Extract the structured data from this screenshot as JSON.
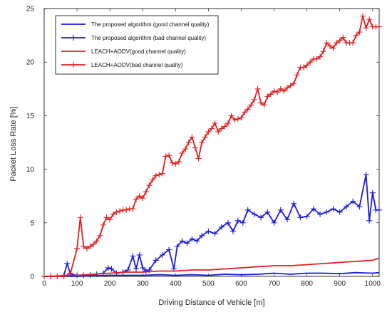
{
  "chart_data": {
    "type": "line",
    "xlabel": "Driving Distance of Vehicle [m]",
    "ylabel": "Packet Loss Rate [%]",
    "xlim": [
      0,
      1020
    ],
    "ylim": [
      0,
      25
    ],
    "xticks": [
      0,
      100,
      200,
      300,
      400,
      500,
      600,
      700,
      800,
      900,
      1000
    ],
    "yticks": [
      0,
      5,
      10,
      15,
      20,
      25
    ],
    "grid": true,
    "legend_position": "top-left",
    "series": [
      {
        "name": "The proposed algorithm (good channel quality)",
        "color": "#1a1adc",
        "marker": "none",
        "x": [
          0,
          100,
          150,
          200,
          250,
          300,
          350,
          400,
          450,
          500,
          550,
          600,
          650,
          700,
          750,
          800,
          850,
          900,
          950,
          1000,
          1020
        ],
        "y": [
          0,
          0,
          0.05,
          0.1,
          0.1,
          0.1,
          0.15,
          0.1,
          0.15,
          0.1,
          0.2,
          0.15,
          0.2,
          0.3,
          0.2,
          0.3,
          0.3,
          0.25,
          0.35,
          0.3,
          0.35
        ]
      },
      {
        "name": "The proposed algorithm (bad channel quality)",
        "color": "#1a1adc",
        "marker": "plus",
        "x": [
          0,
          20,
          40,
          60,
          70,
          80,
          100,
          120,
          140,
          160,
          180,
          195,
          205,
          220,
          240,
          255,
          270,
          280,
          290,
          300,
          310,
          320,
          340,
          360,
          380,
          395,
          405,
          420,
          435,
          450,
          465,
          480,
          500,
          520,
          540,
          560,
          575,
          590,
          605,
          620,
          640,
          660,
          680,
          700,
          720,
          740,
          760,
          780,
          800,
          820,
          840,
          860,
          880,
          900,
          920,
          940,
          960,
          980,
          990,
          1000,
          1010,
          1020
        ],
        "y": [
          0,
          0,
          0,
          0.1,
          1.2,
          0.2,
          0.1,
          0.1,
          0.15,
          0.2,
          0.3,
          0.8,
          0.7,
          0.3,
          0.4,
          0.6,
          1.9,
          0.7,
          2.0,
          0.8,
          0.5,
          0.6,
          1.5,
          2.0,
          2.5,
          0.7,
          2.8,
          3.3,
          3.1,
          3.5,
          3.3,
          3.8,
          4.2,
          4.0,
          4.6,
          5.0,
          4.2,
          5.2,
          5.0,
          6.2,
          5.8,
          5.5,
          6.0,
          5.0,
          6.2,
          5.3,
          6.8,
          5.5,
          5.6,
          6.3,
          5.8,
          6.0,
          6.3,
          6.0,
          6.5,
          7.0,
          6.5,
          9.5,
          5.2,
          7.8,
          6.2,
          6.2
        ]
      },
      {
        "name": "LEACH+AODV(good channel quality)",
        "color": "#e02020",
        "marker": "none",
        "x": [
          0,
          100,
          150,
          200,
          250,
          300,
          350,
          400,
          450,
          500,
          550,
          600,
          650,
          700,
          750,
          800,
          850,
          900,
          950,
          1000,
          1020
        ],
        "y": [
          0,
          0.1,
          0.2,
          0.3,
          0.4,
          0.4,
          0.5,
          0.5,
          0.6,
          0.6,
          0.7,
          0.8,
          0.9,
          1.0,
          1.0,
          1.1,
          1.2,
          1.3,
          1.4,
          1.5,
          1.7
        ]
      },
      {
        "name": "LEACH+AODV(bad channel quality)",
        "color": "#e02020",
        "marker": "plus",
        "x": [
          0,
          20,
          40,
          60,
          80,
          100,
          110,
          120,
          130,
          140,
          150,
          160,
          170,
          180,
          190,
          200,
          210,
          220,
          230,
          240,
          250,
          260,
          270,
          280,
          290,
          300,
          310,
          320,
          330,
          340,
          350,
          360,
          370,
          380,
          390,
          400,
          410,
          420,
          430,
          440,
          450,
          460,
          470,
          480,
          490,
          500,
          510,
          520,
          530,
          540,
          550,
          560,
          570,
          580,
          590,
          600,
          610,
          620,
          630,
          640,
          650,
          660,
          670,
          680,
          690,
          700,
          710,
          720,
          730,
          740,
          750,
          760,
          770,
          780,
          790,
          800,
          810,
          820,
          830,
          840,
          850,
          860,
          870,
          880,
          890,
          900,
          910,
          920,
          930,
          940,
          950,
          960,
          970,
          980,
          990,
          1000,
          1010,
          1020
        ],
        "y": [
          0,
          0,
          0,
          0,
          0.3,
          2.6,
          5.5,
          2.8,
          2.6,
          2.8,
          3.0,
          3.3,
          3.8,
          4.8,
          5.5,
          5.3,
          5.8,
          6.0,
          6.1,
          6.2,
          6.2,
          6.3,
          6.3,
          7.2,
          7.5,
          7.3,
          7.9,
          8.5,
          9.0,
          9.4,
          9.5,
          9.6,
          11.2,
          11.3,
          10.6,
          10.5,
          10.7,
          11.5,
          11.9,
          12.5,
          13.0,
          12.0,
          11.0,
          12.5,
          13.0,
          13.5,
          13.8,
          14.3,
          13.5,
          13.8,
          14.0,
          14.3,
          15.0,
          14.6,
          14.7,
          14.8,
          15.3,
          15.6,
          16.0,
          16.5,
          17.5,
          16.2,
          16.0,
          16.8,
          17.0,
          17.3,
          17.2,
          17.5,
          17.3,
          17.6,
          17.8,
          18.0,
          18.8,
          19.5,
          19.5,
          19.7,
          20.0,
          20.3,
          20.3,
          20.5,
          21.0,
          21.8,
          21.5,
          21.3,
          21.8,
          22.0,
          22.3,
          21.8,
          21.8,
          21.8,
          22.5,
          22.8,
          24.3,
          23.2,
          24.0,
          23.3,
          23.3,
          23.3
        ]
      }
    ]
  }
}
